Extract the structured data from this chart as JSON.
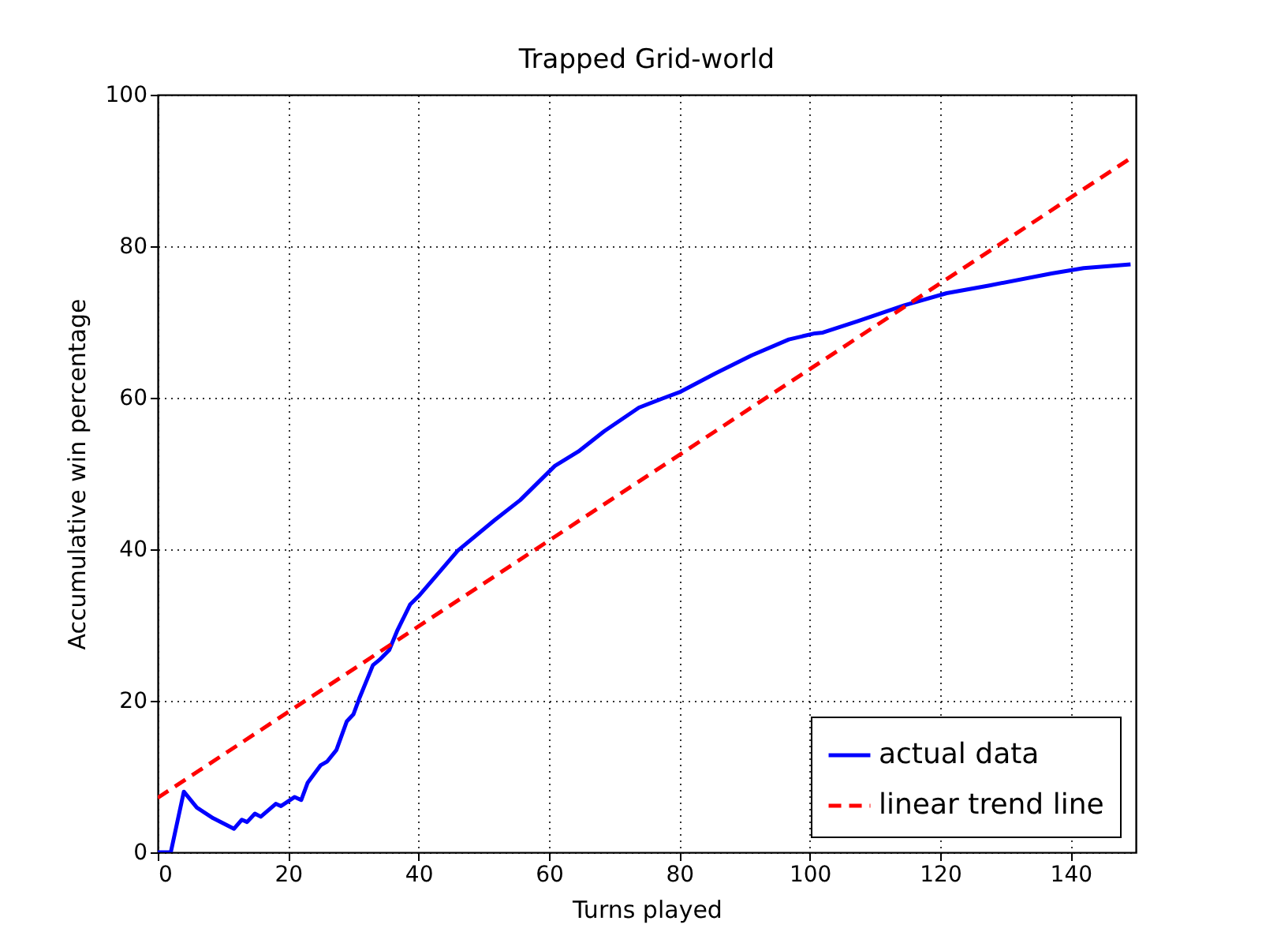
{
  "chart_data": {
    "type": "line",
    "title": "Trapped Grid-world",
    "xlabel": "Turns played",
    "ylabel": "Accumulative win percentage",
    "xlim": [
      0,
      150
    ],
    "ylim": [
      0,
      100
    ],
    "xticks": [
      0,
      20,
      40,
      60,
      80,
      100,
      120,
      140
    ],
    "yticks": [
      0,
      20,
      40,
      60,
      80,
      100
    ],
    "grid": true,
    "legend": "bottom right",
    "marker": "none",
    "series": [
      {
        "name": "actual data",
        "color": "#0000ff",
        "line_style": "solid",
        "x": [
          0,
          2,
          4,
          6,
          8.5,
          11.7,
          12.9,
          13.7,
          14.9,
          15.8,
          18.1,
          18.9,
          21,
          22,
          23,
          25,
          26,
          27.4,
          29,
          30,
          31,
          33,
          34,
          35.5,
          36.7,
          38.7,
          40,
          46,
          51.6,
          55.6,
          60.9,
          64.5,
          68.5,
          73.8,
          77.4,
          80.2,
          85.5,
          91.1,
          96.8,
          100.8,
          102,
          107.3,
          114.5,
          121,
          127.4,
          137.1,
          142,
          149.2
        ],
        "values": [
          0,
          0,
          8,
          5.9,
          4.5,
          3.1,
          4.3,
          4,
          5.1,
          4.7,
          6.4,
          6.1,
          7.3,
          6.9,
          9.2,
          11.5,
          12,
          13.5,
          17.3,
          18.2,
          20.5,
          24.7,
          25.4,
          26.7,
          29.2,
          32.7,
          33.8,
          39.8,
          43.8,
          46.5,
          51,
          52.9,
          55.6,
          58.7,
          59.9,
          60.8,
          63.2,
          65.6,
          67.7,
          68.5,
          68.6,
          70.1,
          72.2,
          73.8,
          74.8,
          76.4,
          77.1,
          77.6
        ]
      },
      {
        "name": "linear trend line",
        "color": "#ff0000",
        "line_style": "dashed",
        "x": [
          0,
          149
        ],
        "values": [
          7.2,
          91.5
        ]
      }
    ]
  }
}
